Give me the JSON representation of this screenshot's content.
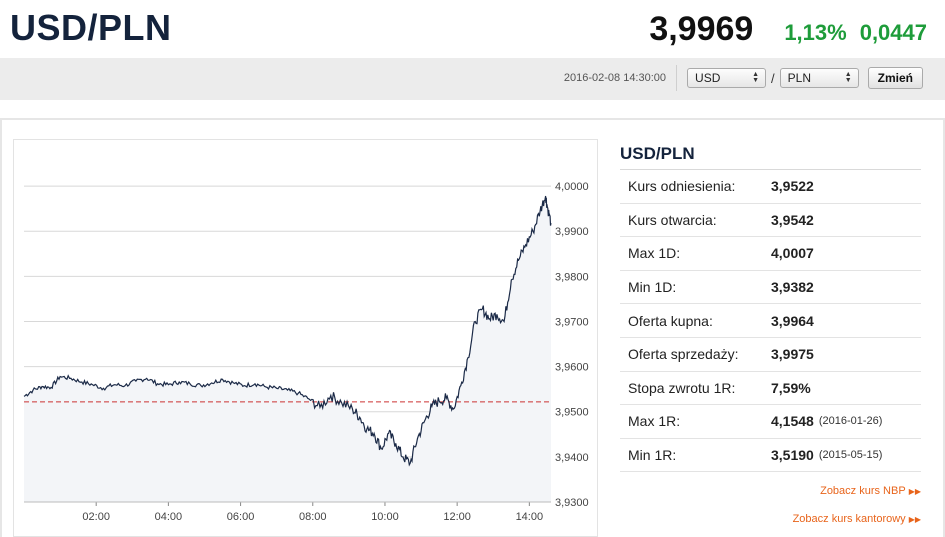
{
  "header": {
    "pair": "USD/PLN",
    "price": "3,9969",
    "change_pct": "1,13%",
    "change_abs": "0,0447",
    "timestamp": "2016-02-08 14:30:00",
    "base_currency": "USD",
    "slash": "/",
    "quote_currency": "PLN",
    "change_button": "Zmień"
  },
  "stats": {
    "title": "USD/PLN",
    "rows": [
      {
        "label": "Kurs odniesienia:",
        "value": "3,9522",
        "date": ""
      },
      {
        "label": "Kurs otwarcia:",
        "value": "3,9542",
        "date": ""
      },
      {
        "label": "Max 1D:",
        "value": "4,0007",
        "date": ""
      },
      {
        "label": "Min 1D:",
        "value": "3,9382",
        "date": ""
      },
      {
        "label": "Oferta kupna:",
        "value": "3,9964",
        "date": ""
      },
      {
        "label": "Oferta sprzedaży:",
        "value": "3,9975",
        "date": ""
      },
      {
        "label": "Stopa zwrotu 1R:",
        "value": "7,59%",
        "date": ""
      },
      {
        "label": "Max 1R:",
        "value": "4,1548",
        "date": "(2016-01-26)"
      },
      {
        "label": "Min 1R:",
        "value": "3,5190",
        "date": "(2015-05-15)"
      }
    ]
  },
  "links": {
    "nbp": "Zobacz kurs NBP",
    "kantor": "Zobacz kurs kantorowy"
  },
  "colors": {
    "title": "#14233c",
    "up": "#1e9c3a",
    "line": "#1b2a47",
    "reference": "#cc3333",
    "link": "#e8641b"
  },
  "chart_data": {
    "type": "line",
    "x_tick_labels": [
      "02:00",
      "04:00",
      "06:00",
      "08:00",
      "10:00",
      "12:00",
      "14:00"
    ],
    "x_ticks_hours": [
      2,
      4,
      6,
      8,
      10,
      12,
      14
    ],
    "xlim_hours": [
      0,
      14.6
    ],
    "y_tick_labels": [
      "4,0000",
      "3,9900",
      "3,9800",
      "3,9700",
      "3,9600",
      "3,9500",
      "3,9400",
      "3,9300"
    ],
    "y_ticks": [
      4.0,
      3.99,
      3.98,
      3.97,
      3.96,
      3.95,
      3.94,
      3.93
    ],
    "ylim": [
      3.93,
      4.008
    ],
    "reference_value": 3.9522,
    "grid": true,
    "series": [
      {
        "points": [
          [
            0.0,
            3.9534
          ],
          [
            0.25,
            3.9548
          ],
          [
            0.5,
            3.9556
          ],
          [
            0.75,
            3.9554
          ],
          [
            1.0,
            3.9578
          ],
          [
            1.3,
            3.9574
          ],
          [
            1.6,
            3.9566
          ],
          [
            1.9,
            3.956
          ],
          [
            2.2,
            3.9552
          ],
          [
            2.5,
            3.956
          ],
          [
            2.8,
            3.9558
          ],
          [
            3.1,
            3.9568
          ],
          [
            3.4,
            3.9574
          ],
          [
            3.7,
            3.9562
          ],
          [
            4.0,
            3.956
          ],
          [
            4.3,
            3.9566
          ],
          [
            4.6,
            3.9562
          ],
          [
            4.9,
            3.9558
          ],
          [
            5.2,
            3.9564
          ],
          [
            5.5,
            3.9572
          ],
          [
            5.8,
            3.9564
          ],
          [
            6.1,
            3.9558
          ],
          [
            6.4,
            3.9562
          ],
          [
            6.7,
            3.9555
          ],
          [
            7.0,
            3.9552
          ],
          [
            7.3,
            3.9548
          ],
          [
            7.6,
            3.9541
          ],
          [
            7.9,
            3.9528
          ],
          [
            8.2,
            3.951
          ],
          [
            8.5,
            3.9536
          ],
          [
            8.8,
            3.952
          ],
          [
            9.1,
            3.9506
          ],
          [
            9.3,
            3.9488
          ],
          [
            9.5,
            3.9462
          ],
          [
            9.7,
            3.9452
          ],
          [
            9.9,
            3.9418
          ],
          [
            10.1,
            3.9452
          ],
          [
            10.3,
            3.943
          ],
          [
            10.5,
            3.94
          ],
          [
            10.7,
            3.9386
          ],
          [
            10.9,
            3.944
          ],
          [
            11.1,
            3.948
          ],
          [
            11.3,
            3.9512
          ],
          [
            11.5,
            3.9524
          ],
          [
            11.7,
            3.953
          ],
          [
            11.9,
            3.9506
          ],
          [
            12.1,
            3.9558
          ],
          [
            12.3,
            3.962
          ],
          [
            12.5,
            3.97
          ],
          [
            12.7,
            3.9728
          ],
          [
            12.9,
            3.9706
          ],
          [
            13.1,
            3.9716
          ],
          [
            13.3,
            3.97
          ],
          [
            13.5,
            3.9792
          ],
          [
            13.7,
            3.9836
          ],
          [
            13.9,
            3.987
          ],
          [
            14.1,
            3.99
          ],
          [
            14.3,
            3.9946
          ],
          [
            14.45,
            3.9978
          ],
          [
            14.5,
            3.9954
          ],
          [
            14.6,
            3.9918
          ]
        ]
      }
    ]
  }
}
